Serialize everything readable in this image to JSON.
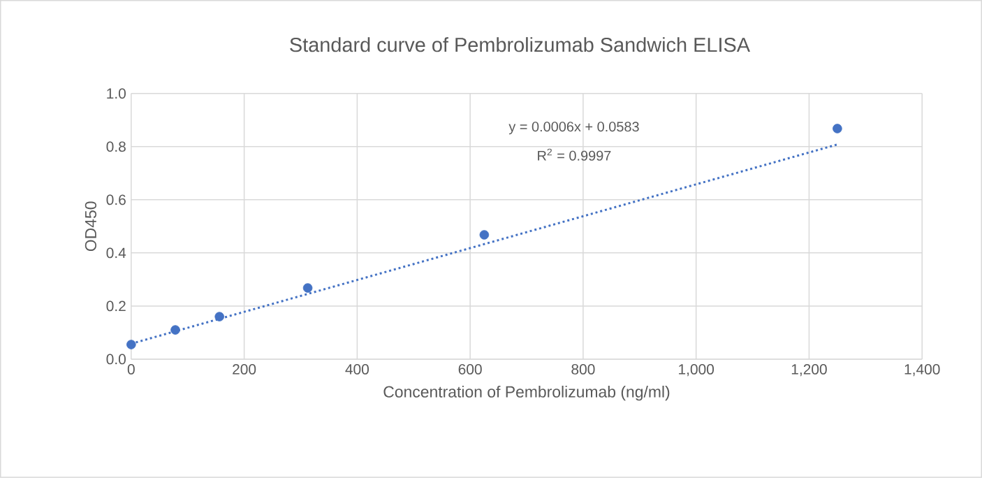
{
  "chart_data": {
    "type": "scatter",
    "title": "Standard curve of Pembrolizumab Sandwich ELISA",
    "xlabel": "Concentration of Pembrolizumab (ng/ml)",
    "ylabel": "OD450",
    "series": [
      {
        "color": "#4472c4",
        "marker": "circle",
        "x": [
          0,
          78.125,
          156.25,
          312.5,
          625,
          1250
        ],
        "values": [
          0.055,
          0.11,
          0.16,
          0.268,
          0.468,
          0.868
        ]
      },
      {
        "type": "line",
        "color": "#4472c4",
        "marker": "none",
        "line_style": "dotted",
        "x": [
          0,
          1250
        ],
        "values": [
          0.058,
          0.808
        ]
      }
    ],
    "annotations": [
      "y = 0.0006x + 0.0583",
      "R$^{2}$ = 0.9997"
    ],
    "xlim": [
      0,
      1400
    ],
    "ylim": [
      0,
      1.0
    ],
    "xticks": [
      0,
      200,
      400,
      600,
      800,
      {
        "value": 1000,
        "label": "1,000"
      },
      {
        "value": 1200,
        "label": "1,200"
      },
      {
        "value": 1400,
        "label": "1,400"
      }
    ],
    "yticks": [
      {
        "value": 0,
        "label": "0.0"
      },
      0.2,
      0.4,
      0.6,
      0.8,
      {
        "value": 1.0,
        "label": "1.0"
      }
    ],
    "grid": true
  }
}
